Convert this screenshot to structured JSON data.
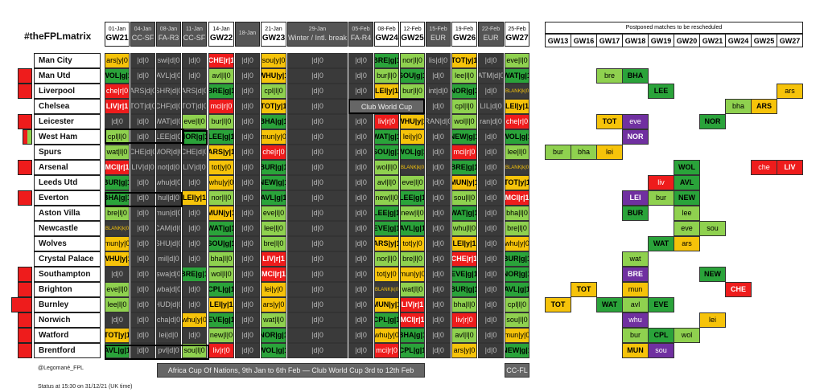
{
  "title": "#theFPLmatrix",
  "credit": "@Legomané_FPL",
  "status": "Status at 15:30 on 31/12/21 (UK time)",
  "colors": {
    "green": "#2aa33a",
    "lightgreen": "#8fd14f",
    "yellow": "#f6c30a",
    "red": "#ee1c1c",
    "purple": "#7030a0",
    "grey": "#808080",
    "dark": "#3a3a3a",
    "black": "#222222"
  },
  "gameweeks": [
    {
      "date": "01-Jan",
      "gw": "GW21",
      "dark": false
    },
    {
      "date": "04-Jan",
      "gw": "CC-SF",
      "dark": true
    },
    {
      "date": "08-Jan",
      "gw": "FA-R3",
      "dark": true
    },
    {
      "date": "11-Jan",
      "gw": "CC-SF",
      "dark": true
    },
    {
      "date": "14-Jan",
      "gw": "GW22",
      "dark": false
    },
    {
      "date": "18-Jan",
      "gw": "",
      "dark": true
    },
    {
      "date": "21-Jan",
      "gw": "GW23",
      "dark": false
    },
    {
      "date": "29-Jan",
      "gw": "Winter / Intl. break",
      "dark": true
    },
    {
      "date": "05-Feb",
      "gw": "FA-R4",
      "dark": true
    },
    {
      "date": "08-Feb",
      "gw": "GW24",
      "dark": false
    },
    {
      "date": "12-Feb",
      "gw": "GW25",
      "dark": false
    },
    {
      "date": "15-Feb",
      "gw": "EUR",
      "dark": true
    },
    {
      "date": "19-Feb",
      "gw": "GW26",
      "dark": false
    },
    {
      "date": "22-Feb",
      "gw": "EUR",
      "dark": true
    },
    {
      "date": "25-Feb",
      "gw": "GW27",
      "dark": false
    }
  ],
  "teams": [
    {
      "name": "Man City",
      "mark": "none",
      "cells": [
        "ars|y|0",
        "|d|0",
        "swi|d|0",
        "|d|0",
        "CHE|r|1",
        "|d|0",
        "sou|y|0",
        "|d|0",
        "|d|0",
        "BRE|g|1",
        "nor|l|0",
        "lis|d|0",
        "TOT|y|1",
        "|d|0",
        "eve|l|0"
      ]
    },
    {
      "name": "Man Utd",
      "mark": "red",
      "cells": [
        "WOL|g|1",
        "|d|0",
        "AVL|d|0",
        "|d|0",
        "avl|l|0",
        "|d|0",
        "WHU|y|1",
        "|d|0",
        "|d|0",
        "bur|l|0",
        "SOU|g|1",
        "|d|0",
        "lee|l|0",
        "ATM|d|0",
        "WAT|g|1"
      ]
    },
    {
      "name": "Liverpool",
      "mark": "red",
      "cells": [
        "che|r|0",
        "ARS|d|0",
        "SHR|d|0",
        "ARS|d|0",
        "BRE|g|1",
        "|d|0",
        "cpl|l|0",
        "|d|0",
        "|d|0",
        "LEI|y|1",
        "bur|l|0",
        "int|d|0",
        "NOR|g|1",
        "|d|0",
        "BLANK|k|0"
      ]
    },
    {
      "name": "Chelsea",
      "mark": "none",
      "cells": [
        "LIV|r|1",
        "TOT|d|0",
        "CHF|d|0",
        "TOT|d|0",
        "mci|r|0",
        "|d|0",
        "TOT|y|1",
        "|d|0",
        "|d|0",
        "|c|0",
        "|c|0",
        "|d|0",
        "cpl|l|0",
        "LIL|d|0",
        "LEI|y|1"
      ]
    },
    {
      "name": "Leicester",
      "mark": "red",
      "cells": [
        "|d|0",
        "|d|0",
        "WAT|d|0",
        "eve|l|0",
        "bur|l|0",
        "|d|0",
        "BHA|g|1",
        "|d|0",
        "|d|0",
        "liv|r|0",
        "WHU|y|1",
        "RAN|d|0",
        "wol|l|0",
        "ran|d|0",
        "che|r|0"
      ]
    },
    {
      "name": "West Ham",
      "mark": "mix",
      "cells": [
        "cpl|l|0",
        "|d|0",
        "LEE|d|0",
        "NOR|g|1",
        "LEE|g|1",
        "|d|0",
        "mun|y|0",
        "|d|0",
        "|d|0",
        "WAT|g|1",
        "lei|y|0",
        "|d|0",
        "NEW|g|1",
        "|d|0",
        "WOL|g|1"
      ]
    },
    {
      "name": "Spurs",
      "mark": "none",
      "cells": [
        "wat|l|0",
        "CHE|d|0",
        "MOR|d|0",
        "CHE|d|0",
        "ARS|y|1",
        "|d|0",
        "che|r|0",
        "|d|0",
        "|d|0",
        "SOU|g|1",
        "WOL|g|1",
        "|d|0",
        "mci|r|0",
        "|d|0",
        "lee|l|0"
      ]
    },
    {
      "name": "Arsenal",
      "mark": "red",
      "cells": [
        "MCI|r|1",
        "LIV|d|0",
        "not|d|0",
        "LIV|d|0",
        "tot|y|0",
        "|d|0",
        "BUR|g|1",
        "|d|0",
        "|d|0",
        "wol|l|0",
        "BLANK|k|0",
        "|d|0",
        "BRE|g|1",
        "|d|0",
        "BLANK|k|0"
      ]
    },
    {
      "name": "Leeds Utd",
      "mark": "none",
      "cells": [
        "BUR|g|1",
        "|d|0",
        "whu|d|0",
        "|d|0",
        "whu|y|0",
        "|d|0",
        "NEW|g|1",
        "|d|0",
        "|d|0",
        "avl|l|0",
        "eve|l|0",
        "|d|0",
        "MUN|y|1",
        "|d|0",
        "TOT|y|1"
      ]
    },
    {
      "name": "Everton",
      "mark": "red",
      "cells": [
        "BHA|g|1",
        "|d|0",
        "hul|d|0",
        "LEI|y|1",
        "nor|l|0",
        "|d|0",
        "AVL|g|1",
        "|d|0",
        "|d|0",
        "new|l|0",
        "LEE|g|1",
        "|d|0",
        "sou|l|0",
        "|d|0",
        "MCI|r|1"
      ]
    },
    {
      "name": "Aston Villa",
      "mark": "none",
      "cells": [
        "bre|l|0",
        "|d|0",
        "mun|d|0",
        "|d|0",
        "MUN|y|1",
        "|d|0",
        "eve|l|0",
        "|d|0",
        "|d|0",
        "LEE|g|1",
        "new|l|0",
        "|d|0",
        "WAT|g|1",
        "|d|0",
        "bha|l|0"
      ]
    },
    {
      "name": "Newcastle",
      "mark": "none",
      "cells": [
        "BLANK|k|0",
        "|d|0",
        "CAM|d|0",
        "|d|0",
        "WAT|g|1",
        "|d|0",
        "lee|l|0",
        "|d|0",
        "|d|0",
        "EVE|g|1",
        "AVL|g|1",
        "|d|0",
        "whu|l|0",
        "|d|0",
        "bre|l|0"
      ]
    },
    {
      "name": "Wolves",
      "mark": "none",
      "cells": [
        "mun|y|0",
        "|d|0",
        "SHU|d|0",
        "|d|0",
        "SOU|g|1",
        "|d|0",
        "bre|l|0",
        "|d|0",
        "|d|0",
        "ARS|y|1",
        "tot|y|0",
        "|d|0",
        "LEI|y|1",
        "|d|0",
        "whu|y|0"
      ]
    },
    {
      "name": "Crystal Palace",
      "mark": "none",
      "cells": [
        "WHU|y|1",
        "|d|0",
        "mil|d|0",
        "|d|0",
        "bha|l|0",
        "|d|0",
        "LIV|r|1",
        "|d|0",
        "|d|0",
        "nor|l|0",
        "bre|l|0",
        "|d|0",
        "CHE|r|1",
        "|d|0",
        "BUR|g|1"
      ]
    },
    {
      "name": "Southampton",
      "mark": "red",
      "cells": [
        "|d|0",
        "|d|0",
        "swa|d|0",
        "BRE|g|1",
        "wol|l|0",
        "|d|0",
        "MCI|r|1",
        "|d|0",
        "|d|0",
        "tot|y|0",
        "mun|y|0",
        "|d|0",
        "EVE|g|1",
        "|d|0",
        "NOR|g|1"
      ]
    },
    {
      "name": "Brighton",
      "mark": "red",
      "cells": [
        "eve|l|0",
        "|d|0",
        "wba|d|0",
        "|d|0",
        "CPL|g|1",
        "|d|0",
        "lei|y|0",
        "|d|0",
        "|d|0",
        "BLANK|k|0",
        "wat|l|0",
        "|d|0",
        "BUR|g|1",
        "|d|0",
        "AVL|g|1"
      ]
    },
    {
      "name": "Burnley",
      "mark": "bigred",
      "cells": [
        "lee|l|0",
        "|d|0",
        "HUD|d|0",
        "|d|0",
        "LEI|y|1",
        "|d|0",
        "ars|y|0",
        "|d|0",
        "|d|0",
        "MUN|y|1",
        "LIV|r|1",
        "|d|0",
        "bha|l|0",
        "|d|0",
        "cpl|l|0"
      ]
    },
    {
      "name": "Norwich",
      "mark": "red",
      "cells": [
        "|d|0",
        "|d|0",
        "cha|d|0",
        "whu|y|0",
        "EVE|g|1",
        "|d|0",
        "wat|l|0",
        "|d|0",
        "|d|0",
        "CPL|g|1",
        "MCI|r|1",
        "|d|0",
        "liv|r|0",
        "|d|0",
        "sou|l|0"
      ]
    },
    {
      "name": "Watford",
      "mark": "red",
      "cells": [
        "TOT|y|1",
        "|d|0",
        "lei|d|0",
        "|d|0",
        "new|l|0",
        "|d|0",
        "NOR|g|1",
        "|d|0",
        "|d|0",
        "whu|y|0",
        "BHA|g|1",
        "|d|0",
        "avl|l|0",
        "|d|0",
        "mun|y|0"
      ]
    },
    {
      "name": "Brentford",
      "mark": "red",
      "cells": [
        "AVL|g|1",
        "|d|0",
        "pvl|d|0",
        "sou|l|0",
        "liv|r|0",
        "|d|0",
        "WOL|g|1",
        "|d|0",
        "|d|0",
        "mci|r|0",
        "CPL|g|1",
        "|d|0",
        "ars|y|0",
        "|d|0",
        "NEW|g|1"
      ]
    }
  ],
  "banners": {
    "club_world_cup": "Club World Cup",
    "africa": "Africa Cup Of Nations, 9th Jan to 6th Feb — Club World Cup 3rd to 12th Feb",
    "ccfl": "CC-FL"
  },
  "postponed": {
    "title": "Postponed matches to be rescheduled",
    "headers": [
      "GW13",
      "GW16",
      "GW17",
      "GW18",
      "GW19",
      "GW20",
      "GW21",
      "GW24",
      "GW25",
      "GW27"
    ],
    "entries": [
      {
        "row": 1,
        "col": 2,
        "text": "bre",
        "c": "l",
        "b": 0
      },
      {
        "row": 1,
        "col": 3,
        "text": "BHA",
        "c": "g",
        "b": 1
      },
      {
        "row": 2,
        "col": 4,
        "text": "LEE",
        "c": "g",
        "b": 1
      },
      {
        "row": 2,
        "col": 9,
        "text": "ars",
        "c": "y",
        "b": 0
      },
      {
        "row": 3,
        "col": 7,
        "text": "bha",
        "c": "l",
        "b": 0
      },
      {
        "row": 3,
        "col": 8,
        "text": "ARS",
        "c": "y",
        "b": 1
      },
      {
        "row": 4,
        "col": 2,
        "text": "TOT",
        "c": "y",
        "b": 1
      },
      {
        "row": 4,
        "col": 3,
        "text": "eve",
        "c": "p",
        "b": 0
      },
      {
        "row": 4,
        "col": 6,
        "text": "NOR",
        "c": "g",
        "b": 1
      },
      {
        "row": 5,
        "col": 3,
        "text": "NOR",
        "c": "p",
        "b": 1
      },
      {
        "row": 6,
        "col": 0,
        "text": "bur",
        "c": "l",
        "b": 0
      },
      {
        "row": 6,
        "col": 1,
        "text": "bha",
        "c": "l",
        "b": 0
      },
      {
        "row": 6,
        "col": 2,
        "text": "lei",
        "c": "y",
        "b": 0
      },
      {
        "row": 7,
        "col": 5,
        "text": "WOL",
        "c": "g",
        "b": 1
      },
      {
        "row": 7,
        "col": 8,
        "text": "che",
        "c": "r",
        "b": 0
      },
      {
        "row": 7,
        "col": 9,
        "text": "LIV",
        "c": "r",
        "b": 1
      },
      {
        "row": 8,
        "col": 4,
        "text": "liv",
        "c": "r",
        "b": 0
      },
      {
        "row": 8,
        "col": 5,
        "text": "AVL",
        "c": "g",
        "b": 1
      },
      {
        "row": 9,
        "col": 3,
        "text": "LEI",
        "c": "p",
        "b": 1
      },
      {
        "row": 9,
        "col": 4,
        "text": "bur",
        "c": "l",
        "b": 0
      },
      {
        "row": 9,
        "col": 5,
        "text": "NEW",
        "c": "g",
        "b": 1
      },
      {
        "row": 10,
        "col": 3,
        "text": "BUR",
        "c": "g",
        "b": 1
      },
      {
        "row": 10,
        "col": 5,
        "text": "lee",
        "c": "l",
        "b": 0
      },
      {
        "row": 11,
        "col": 5,
        "text": "eve",
        "c": "l",
        "b": 0
      },
      {
        "row": 11,
        "col": 6,
        "text": "sou",
        "c": "l",
        "b": 0
      },
      {
        "row": 12,
        "col": 4,
        "text": "WAT",
        "c": "g",
        "b": 1
      },
      {
        "row": 12,
        "col": 5,
        "text": "ars",
        "c": "y",
        "b": 0
      },
      {
        "row": 13,
        "col": 3,
        "text": "wat",
        "c": "l",
        "b": 0
      },
      {
        "row": 14,
        "col": 3,
        "text": "BRE",
        "c": "p",
        "b": 1
      },
      {
        "row": 14,
        "col": 6,
        "text": "NEW",
        "c": "g",
        "b": 1
      },
      {
        "row": 15,
        "col": 1,
        "text": "TOT",
        "c": "y",
        "b": 1
      },
      {
        "row": 15,
        "col": 3,
        "text": "mun",
        "c": "y",
        "b": 0
      },
      {
        "row": 15,
        "col": 7,
        "text": "CHE",
        "c": "r",
        "b": 1
      },
      {
        "row": 16,
        "col": 0,
        "text": "TOT",
        "c": "y",
        "b": 1
      },
      {
        "row": 16,
        "col": 2,
        "text": "WAT",
        "c": "g",
        "b": 1
      },
      {
        "row": 16,
        "col": 3,
        "text": "avl",
        "c": "l",
        "b": 0
      },
      {
        "row": 16,
        "col": 4,
        "text": "EVE",
        "c": "g",
        "b": 1
      },
      {
        "row": 17,
        "col": 3,
        "text": "whu",
        "c": "p",
        "b": 0
      },
      {
        "row": 17,
        "col": 6,
        "text": "lei",
        "c": "y",
        "b": 0
      },
      {
        "row": 18,
        "col": 3,
        "text": "bur",
        "c": "l",
        "b": 0
      },
      {
        "row": 18,
        "col": 4,
        "text": "CPL",
        "c": "g",
        "b": 1
      },
      {
        "row": 18,
        "col": 5,
        "text": "wol",
        "c": "l",
        "b": 0
      },
      {
        "row": 19,
        "col": 3,
        "text": "MUN",
        "c": "y",
        "b": 1
      },
      {
        "row": 19,
        "col": 4,
        "text": "sou",
        "c": "p",
        "b": 0
      }
    ]
  }
}
